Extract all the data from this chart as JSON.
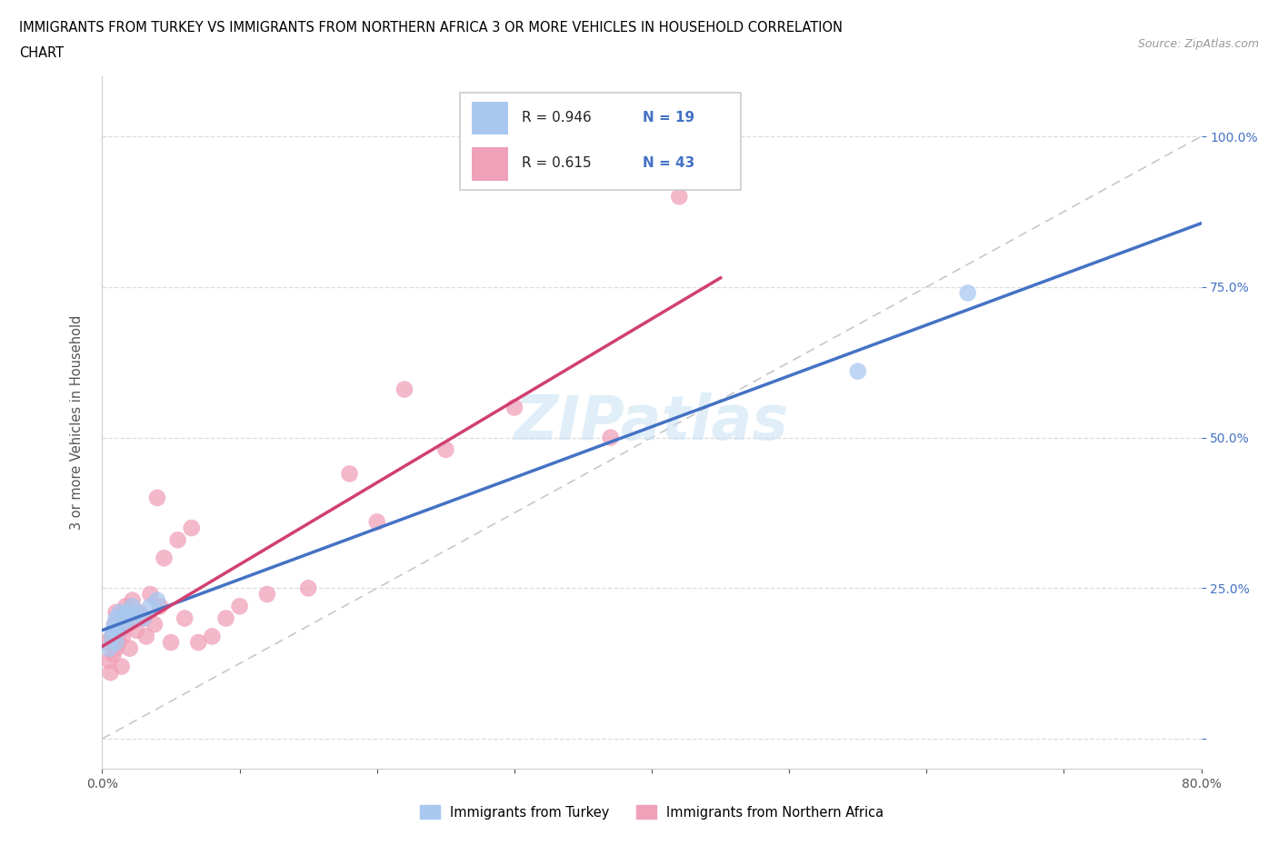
{
  "title_line1": "IMMIGRANTS FROM TURKEY VS IMMIGRANTS FROM NORTHERN AFRICA 3 OR MORE VEHICLES IN HOUSEHOLD CORRELATION",
  "title_line2": "CHART",
  "source_text": "Source: ZipAtlas.com",
  "ylabel": "3 or more Vehicles in Household",
  "xlim": [
    0.0,
    0.8
  ],
  "ylim": [
    -0.05,
    1.1
  ],
  "ytick_positions": [
    0.0,
    0.25,
    0.5,
    0.75,
    1.0
  ],
  "ytick_labels": [
    "",
    "25.0%",
    "50.0%",
    "75.0%",
    "100.0%"
  ],
  "xtick_positions": [
    0.0,
    0.1,
    0.2,
    0.3,
    0.4,
    0.5,
    0.6,
    0.7,
    0.8
  ],
  "xtick_labels": [
    "0.0%",
    "",
    "",
    "",
    "",
    "",
    "",
    "",
    "80.0%"
  ],
  "legend_R1": "0.946",
  "legend_N1": "19",
  "legend_R2": "0.615",
  "legend_N2": "43",
  "color_turkey": "#a8c8f0",
  "color_turkey_fill": "#a8c8f0",
  "color_nafrica": "#f0a0b8",
  "color_nafrica_fill": "#f0a0b8",
  "color_turkey_line": "#4472c4",
  "color_nafrica_line": "#d04070",
  "color_diagonal": "#c8c8c8",
  "watermark_text": "ZIPatlas",
  "turkey_x": [
    0.005,
    0.007,
    0.008,
    0.009,
    0.01,
    0.01,
    0.012,
    0.013,
    0.015,
    0.016,
    0.018,
    0.02,
    0.022,
    0.025,
    0.03,
    0.035,
    0.04,
    0.55,
    0.63
  ],
  "turkey_y": [
    0.15,
    0.17,
    0.18,
    0.19,
    0.16,
    0.2,
    0.18,
    0.21,
    0.19,
    0.2,
    0.21,
    0.2,
    0.22,
    0.21,
    0.2,
    0.22,
    0.23,
    0.61,
    0.74
  ],
  "nafrica_x": [
    0.003,
    0.005,
    0.006,
    0.007,
    0.008,
    0.009,
    0.01,
    0.01,
    0.012,
    0.013,
    0.014,
    0.015,
    0.015,
    0.017,
    0.018,
    0.02,
    0.022,
    0.025,
    0.027,
    0.03,
    0.032,
    0.035,
    0.038,
    0.04,
    0.042,
    0.045,
    0.05,
    0.055,
    0.06,
    0.065,
    0.07,
    0.08,
    0.09,
    0.1,
    0.12,
    0.15,
    0.18,
    0.2,
    0.22,
    0.25,
    0.3,
    0.37,
    0.42
  ],
  "nafrica_y": [
    0.16,
    0.13,
    0.11,
    0.17,
    0.14,
    0.19,
    0.15,
    0.21,
    0.16,
    0.18,
    0.12,
    0.2,
    0.17,
    0.22,
    0.19,
    0.15,
    0.23,
    0.18,
    0.21,
    0.2,
    0.17,
    0.24,
    0.19,
    0.4,
    0.22,
    0.3,
    0.16,
    0.33,
    0.2,
    0.35,
    0.16,
    0.17,
    0.2,
    0.22,
    0.24,
    0.25,
    0.44,
    0.36,
    0.58,
    0.48,
    0.55,
    0.5,
    0.9
  ]
}
